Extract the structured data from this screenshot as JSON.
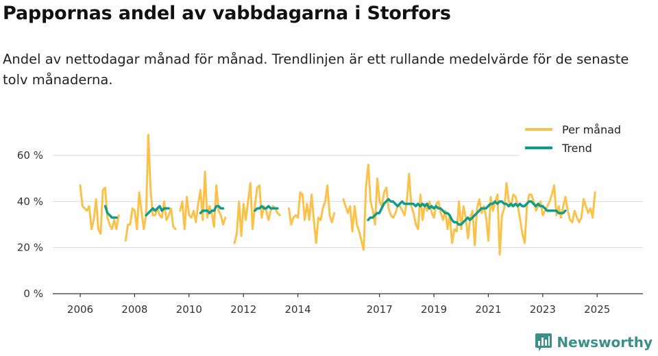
{
  "header": {
    "title": "Pappornas andel av vabbdagarna i Storfors",
    "subtitle": "Andel av nettodagar månad för månad. Trendlinjen är ett rullande medelvärde för de senaste tolv månaderna."
  },
  "brand": {
    "name": "Newsworthy"
  },
  "colors": {
    "monthly": "#fbc148",
    "trend": "#0f9c8c",
    "grid": "#dddddd",
    "axis": "#333333",
    "brand": "#3a8f8a"
  },
  "chart_data": {
    "type": "line",
    "title": "Pappornas andel av vabbdagarna i Storfors",
    "xlabel": "",
    "ylabel": "",
    "ylim": [
      0,
      70
    ],
    "yticks": [
      0,
      20,
      40,
      60
    ],
    "ytick_labels": [
      "0 %",
      "20 %",
      "40 %",
      "60 %"
    ],
    "xlim": [
      2006.0,
      2025.75
    ],
    "xtick_labels": [
      {
        "label": "2006",
        "x": 2006.0
      },
      {
        "label": "2008",
        "x": 2008.0
      },
      {
        "label": "2010",
        "x": 2010.0
      },
      {
        "label": "2012",
        "x": 2012.0
      },
      {
        "label": "2014",
        "x": 2014.0
      },
      {
        "label": "2017",
        "x": 2017.0
      },
      {
        "label": "2019",
        "x": 2019.0
      },
      {
        "label": "2021",
        "x": 2021.0
      },
      {
        "label": "2023",
        "x": 2023.0
      },
      {
        "label": "2025",
        "x": 2025.0
      }
    ],
    "legend_position": "top-right",
    "series": [
      {
        "name": "Per månad",
        "segments": [
          {
            "start": 2006.0,
            "values": [
              47,
              38,
              37,
              36,
              38,
              28,
              32,
              41,
              28,
              26,
              45,
              46,
              33,
              30,
              28,
              32,
              28,
              34
            ]
          },
          {
            "start": 2007.67,
            "values": [
              23,
              30,
              30,
              37,
              36,
              28,
              44,
              36,
              28,
              34,
              69,
              45,
              34,
              34,
              37,
              34,
              33,
              40,
              32,
              34,
              37,
              29,
              28
            ]
          },
          {
            "start": 2009.67,
            "values": [
              36,
              40,
              28,
              42,
              34,
              33,
              36,
              31,
              39,
              45,
              32,
              53,
              33,
              38,
              35,
              29,
              47,
              36,
              34,
              30,
              33
            ]
          },
          {
            "start": 2011.67,
            "values": [
              22,
              26,
              40,
              25,
              39,
              32,
              40,
              48,
              28,
              38,
              46,
              47,
              33,
              38,
              36,
              32,
              36,
              38,
              37,
              35,
              34
            ]
          },
          {
            "start": 2013.67,
            "values": [
              37,
              30,
              33,
              34,
              33,
              44,
              43,
              32,
              39,
              32,
              43,
              32,
              22,
              33,
              32,
              37,
              40,
              47,
              34,
              31,
              35
            ]
          },
          {
            "start": 2015.67,
            "values": [
              41,
              38,
              35,
              38,
              27,
              38,
              30,
              27,
              23,
              19,
              46,
              56,
              40,
              36,
              30,
              50,
              40,
              38,
              44,
              46,
              37,
              34,
              33,
              35,
              38,
              38,
              36,
              34,
              40,
              52,
              38,
              35,
              30,
              28,
              43,
              32,
              39,
              36,
              40,
              35,
              33,
              39,
              40,
              35,
              32,
              36,
              28,
              34,
              22,
              28,
              27,
              40,
              28,
              38,
              33,
              24,
              33,
              36,
              21,
              37,
              41,
              35,
              38,
              33,
              23,
              42,
              36,
              40,
              43,
              17,
              34,
              37,
              48,
              40,
              38,
              43,
              42,
              38,
              32,
              26,
              22,
              38,
              43,
              43,
              40,
              36,
              38,
              40,
              34,
              36,
              38,
              40,
              43,
              47,
              34,
              38,
              33,
              38,
              42,
              36,
              32,
              31,
              36,
              33,
              31,
              33,
              41,
              38,
              35,
              37,
              33,
              44
            ]
          }
        ]
      },
      {
        "name": "Trend",
        "segments": [
          {
            "start": 2006.92,
            "values": [
              38,
              35,
              34,
              33,
              33,
              33
            ]
          },
          {
            "start": 2008.42,
            "values": [
              34,
              35,
              36,
              37,
              36,
              37,
              38,
              36,
              37,
              37,
              37
            ]
          },
          {
            "start": 2010.42,
            "values": [
              35,
              36,
              36,
              36,
              35,
              36,
              36,
              38,
              38,
              37,
              37
            ]
          },
          {
            "start": 2012.42,
            "values": [
              36,
              37,
              37,
              38,
              37,
              37,
              38,
              37,
              37,
              37,
              37
            ]
          },
          {
            "start": 2016.58,
            "values": [
              32,
              33,
              33,
              34,
              35,
              35,
              37,
              39,
              40,
              41,
              40,
              40,
              39,
              38,
              39,
              40,
              39,
              39,
              39,
              39,
              39,
              38,
              39,
              38,
              39,
              38,
              39,
              37,
              38,
              37,
              38,
              37,
              37,
              36,
              35,
              35,
              34,
              32,
              31,
              31,
              30,
              30,
              31,
              32,
              33,
              32,
              33,
              34,
              35,
              36,
              37,
              37,
              37,
              38,
              39,
              39,
              40,
              39,
              40,
              40,
              39,
              39,
              38,
              39,
              38,
              39,
              38,
              39,
              38,
              38,
              39,
              40,
              40,
              39,
              38,
              39,
              38,
              38,
              37,
              36,
              36,
              36,
              36,
              36,
              35,
              35,
              35,
              36
            ]
          }
        ]
      }
    ]
  }
}
